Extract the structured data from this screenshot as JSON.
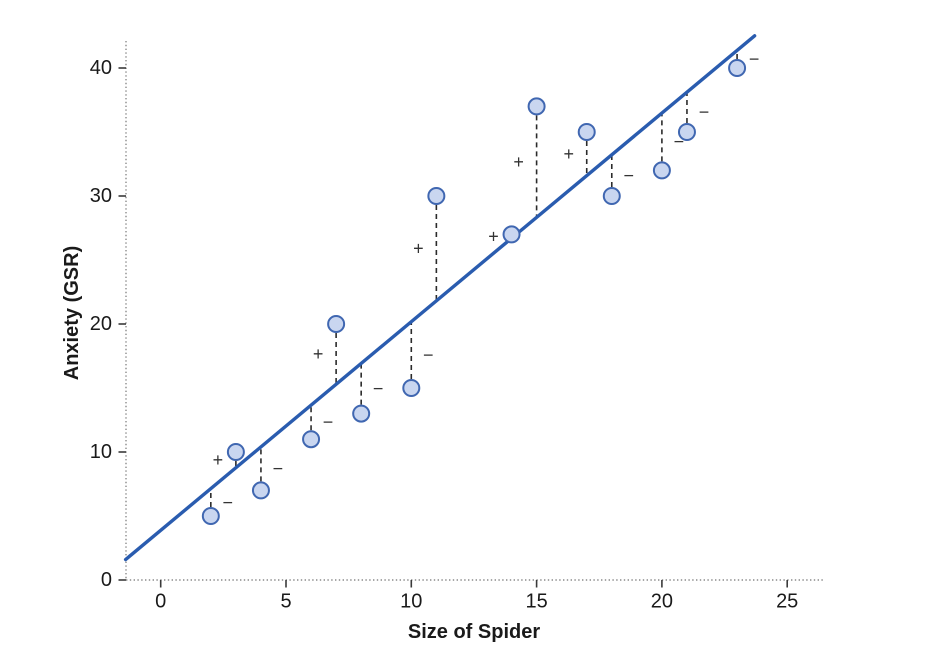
{
  "chart_data": {
    "type": "scatter",
    "title": "",
    "xlabel": "Size of Spider",
    "ylabel": "Anxiety (GSR)",
    "x_ticks": [
      0,
      5,
      10,
      15,
      20,
      25
    ],
    "y_ticks": [
      0,
      10,
      20,
      30,
      40
    ],
    "xlim": [
      -1.4,
      26.4
    ],
    "ylim": [
      0,
      42.4
    ],
    "grid": false,
    "legend": "none",
    "points": [
      {
        "x": 2,
        "y": 5,
        "residual_sign": "−",
        "sign_side": "right"
      },
      {
        "x": 3,
        "y": 10,
        "residual_sign": "+",
        "sign_side": "left"
      },
      {
        "x": 4,
        "y": 7,
        "residual_sign": "−",
        "sign_side": "right"
      },
      {
        "x": 6,
        "y": 11,
        "residual_sign": "−",
        "sign_side": "right"
      },
      {
        "x": 7,
        "y": 20,
        "residual_sign": "+",
        "sign_side": "left"
      },
      {
        "x": 8,
        "y": 13,
        "residual_sign": "−",
        "sign_side": "right"
      },
      {
        "x": 10,
        "y": 15,
        "residual_sign": "−",
        "sign_side": "right"
      },
      {
        "x": 11,
        "y": 30,
        "residual_sign": "+",
        "sign_side": "left"
      },
      {
        "x": 14,
        "y": 27,
        "residual_sign": "+",
        "sign_side": "left"
      },
      {
        "x": 15,
        "y": 37,
        "residual_sign": "+",
        "sign_side": "left"
      },
      {
        "x": 17,
        "y": 35,
        "residual_sign": "+",
        "sign_side": "left"
      },
      {
        "x": 18,
        "y": 30,
        "residual_sign": "−",
        "sign_side": "right"
      },
      {
        "x": 20,
        "y": 32,
        "residual_sign": "−",
        "sign_side": "right"
      },
      {
        "x": 21,
        "y": 35,
        "residual_sign": "−",
        "sign_side": "right"
      },
      {
        "x": 23,
        "y": 40,
        "residual_sign": "−",
        "sign_side": "right"
      }
    ],
    "regression_line": {
      "slope": 1.63,
      "intercept": 3.88,
      "x_start": -1.4,
      "x_end": 23.7
    }
  },
  "colors": {
    "regression_line": "#2a5caf",
    "point_fill": "#c9d6f0",
    "point_stroke": "#4067b1",
    "residual_dash": "#2b2b2b",
    "sign": "#333333",
    "axis_dotted": "#8a8a8a",
    "tick": "#3a3a3a",
    "text": "#1a1a1a"
  }
}
